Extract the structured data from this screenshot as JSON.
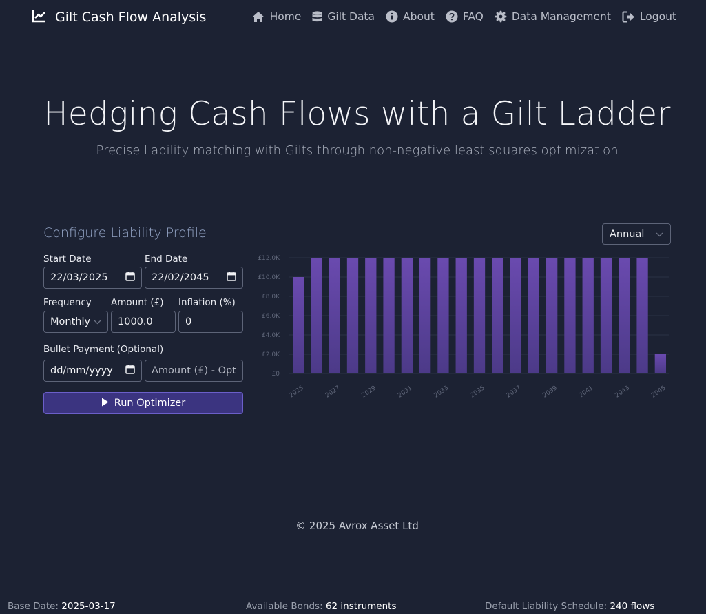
{
  "nav": {
    "brand": "Gilt Cash Flow Analysis",
    "brand_icon": "chart-line-icon",
    "links": [
      {
        "label": "Home",
        "icon": "home-icon"
      },
      {
        "label": "Gilt Data",
        "icon": "database-icon"
      },
      {
        "label": "About",
        "icon": "info-icon"
      },
      {
        "label": "FAQ",
        "icon": "question-icon"
      },
      {
        "label": "Data Management",
        "icon": "gear-icon"
      },
      {
        "label": "Logout",
        "icon": "logout-icon"
      }
    ]
  },
  "hero": {
    "title": "Hedging Cash Flows with a Gilt Ladder",
    "subtitle": "Precise liability matching with Gilts through non-negative least squares optimization"
  },
  "form": {
    "title": "Configure Liability Profile",
    "start_date_label": "Start Date",
    "start_date": "22/03/2025",
    "end_date_label": "End Date",
    "end_date": "22/02/2045",
    "frequency_label": "Frequency",
    "frequency": "Monthly",
    "amount_label": "Amount (£)",
    "amount": "1000.0",
    "inflation_label": "Inflation (%)",
    "inflation": "0",
    "bullet_label": "Bullet Payment (Optional)",
    "bullet_date_placeholder": "dd/mm/yyyy",
    "bullet_amount_placeholder": "Amount (£) - Opti",
    "run_button": "Run Optimizer"
  },
  "chart_controls": {
    "period": "Annual"
  },
  "chart_data": {
    "type": "bar",
    "categories": [
      "2025",
      "2026",
      "2027",
      "2028",
      "2029",
      "2030",
      "2031",
      "2032",
      "2033",
      "2034",
      "2035",
      "2036",
      "2037",
      "2038",
      "2039",
      "2040",
      "2041",
      "2042",
      "2043",
      "2044",
      "2045"
    ],
    "x_tick_labels": [
      "2025",
      "2027",
      "2029",
      "2031",
      "2033",
      "2035",
      "2037",
      "2039",
      "2041",
      "2043",
      "2045"
    ],
    "values": [
      10000,
      12000,
      12000,
      12000,
      12000,
      12000,
      12000,
      12000,
      12000,
      12000,
      12000,
      12000,
      12000,
      12000,
      12000,
      12000,
      12000,
      12000,
      12000,
      12000,
      2000
    ],
    "y_ticks": [
      0,
      2000,
      4000,
      6000,
      8000,
      10000,
      12000
    ],
    "y_tick_labels": [
      "£0",
      "£2.0K",
      "£4.0K",
      "£6.0K",
      "£8.0K",
      "£10.0K",
      "£12.0K"
    ],
    "ylim": [
      0,
      12000
    ],
    "grid": true,
    "bar_color": "#6a4aaf"
  },
  "footer": {
    "copyright": "© 2025 Avrox Asset Ltd"
  },
  "status": {
    "base_date_label": "Base Date:",
    "base_date": "2025-03-17",
    "bonds_label": "Available Bonds:",
    "bonds": "62 instruments",
    "schedule_label": "Default Liability Schedule:",
    "schedule": "240 flows"
  }
}
